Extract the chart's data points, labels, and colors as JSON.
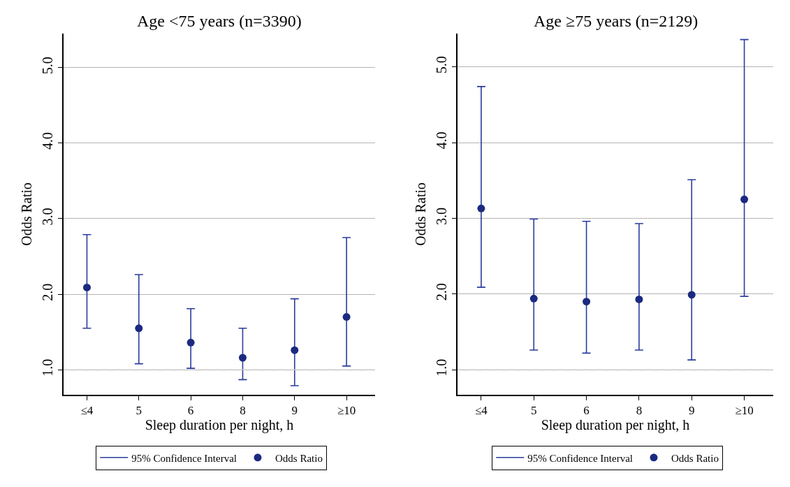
{
  "chart_data": [
    {
      "type": "scatter",
      "title": "Age <75 years (n=3390)",
      "xlabel": "Sleep duration per night, h",
      "ylabel": "Odds Ratio",
      "categories": [
        "≤4",
        "5",
        "6",
        "8",
        "9",
        "≥10"
      ],
      "series": [
        {
          "name": "Odds Ratio",
          "color": "#1b2a80",
          "values": [
            2.09,
            1.55,
            1.36,
            1.16,
            1.26,
            1.7
          ],
          "errors": [
            [
              1.55,
              2.79
            ],
            [
              1.08,
              2.26
            ],
            [
              1.02,
              1.81
            ],
            [
              0.87,
              1.55
            ],
            [
              0.79,
              1.94
            ],
            [
              1.05,
              2.75
            ]
          ]
        }
      ],
      "ylim": [
        0.67,
        5.45
      ],
      "yticks": [
        {
          "value": 1,
          "label": "1.0"
        },
        {
          "value": 2,
          "label": "2.0"
        },
        {
          "value": 3,
          "label": "3.0"
        },
        {
          "value": 4,
          "label": "4.0"
        },
        {
          "value": 5,
          "label": "5.0"
        }
      ],
      "ref_lines": [
        {
          "axis": "y",
          "value": 1,
          "color": "#c8c8c8",
          "line_style": "dashed"
        }
      ],
      "annotations": [
        "95% Confidence Interval"
      ],
      "grid": "y",
      "legend": "bottom",
      "marker": "circle"
    },
    {
      "type": "scatter",
      "title": "Age ≥75 years (n=2129)",
      "xlabel": "Sleep duration per night, h",
      "ylabel": "Odds Ratio",
      "categories": [
        "≤4",
        "5",
        "6",
        "8",
        "9",
        "≥10"
      ],
      "series": [
        {
          "name": "Odds Ratio",
          "color": "#1b2a80",
          "values": [
            3.13,
            1.94,
            1.9,
            1.93,
            1.99,
            3.25
          ],
          "errors": [
            [
              2.09,
              4.74
            ],
            [
              1.26,
              2.99
            ],
            [
              1.22,
              2.96
            ],
            [
              1.26,
              2.93
            ],
            [
              1.13,
              3.51
            ],
            [
              1.97,
              5.36
            ]
          ]
        }
      ],
      "ylim": [
        0.67,
        5.44
      ],
      "yticks": [
        {
          "value": 1,
          "label": "1.0"
        },
        {
          "value": 2,
          "label": "2.0"
        },
        {
          "value": 3,
          "label": "3.0"
        },
        {
          "value": 4,
          "label": "4.0"
        },
        {
          "value": 5,
          "label": "5.0"
        }
      ],
      "ref_lines": [
        {
          "axis": "y",
          "value": 1,
          "color": "#c8c8c8",
          "line_style": "dashed"
        }
      ],
      "annotations": [
        "95% Confidence Interval"
      ],
      "grid": "y",
      "legend": "bottom",
      "marker": "circle"
    }
  ]
}
